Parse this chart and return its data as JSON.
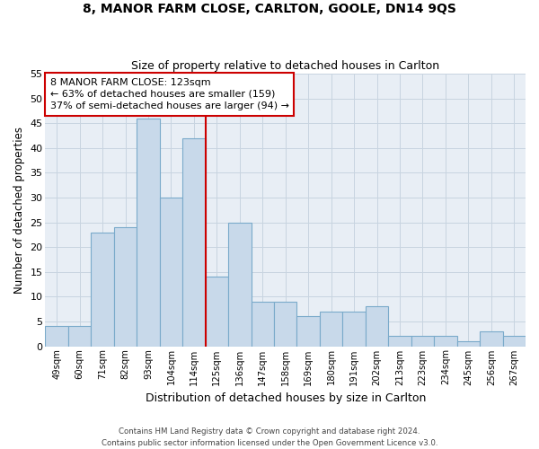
{
  "title_line1": "8, MANOR FARM CLOSE, CARLTON, GOOLE, DN14 9QS",
  "title_line2": "Size of property relative to detached houses in Carlton",
  "xlabel": "Distribution of detached houses by size in Carlton",
  "ylabel": "Number of detached properties",
  "footer_line1": "Contains HM Land Registry data © Crown copyright and database right 2024.",
  "footer_line2": "Contains public sector information licensed under the Open Government Licence v3.0.",
  "categories": [
    "49sqm",
    "60sqm",
    "71sqm",
    "82sqm",
    "93sqm",
    "104sqm",
    "114sqm",
    "125sqm",
    "136sqm",
    "147sqm",
    "158sqm",
    "169sqm",
    "180sqm",
    "191sqm",
    "202sqm",
    "213sqm",
    "223sqm",
    "234sqm",
    "245sqm",
    "256sqm",
    "267sqm"
  ],
  "values": [
    4,
    4,
    23,
    24,
    46,
    30,
    42,
    14,
    25,
    9,
    9,
    6,
    7,
    7,
    8,
    2,
    2,
    2,
    1,
    3,
    2
  ],
  "bar_color": "#c8d9ea",
  "bar_edge_color": "#7aaaca",
  "vline_color": "#cc0000",
  "annotation_text": "8 MANOR FARM CLOSE: 123sqm\n← 63% of detached houses are smaller (159)\n37% of semi-detached houses are larger (94) →",
  "annotation_box_color": "#ffffff",
  "annotation_box_edge": "#cc0000",
  "ylim": [
    0,
    55
  ],
  "yticks": [
    0,
    5,
    10,
    15,
    20,
    25,
    30,
    35,
    40,
    45,
    50,
    55
  ],
  "grid_color": "#c8d4e0",
  "bg_color": "#e8eef5",
  "title1_fontsize": 10,
  "title2_fontsize": 9,
  "xlabel_fontsize": 9,
  "ylabel_fontsize": 8.5
}
